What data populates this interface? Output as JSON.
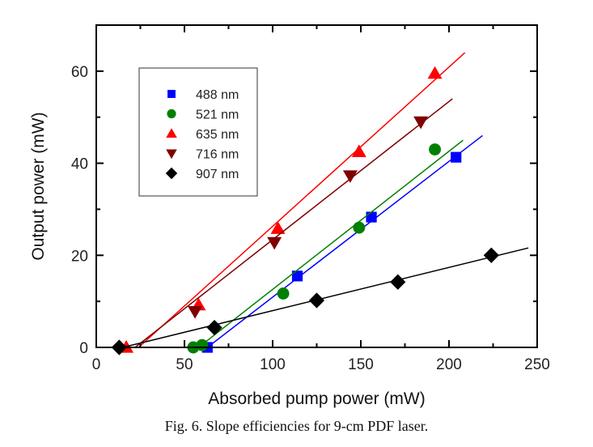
{
  "chart_data": {
    "type": "scatter",
    "title": "",
    "xlabel": "Absorbed pump power (mW)",
    "ylabel": "Output power (mW)",
    "xlim": [
      0,
      250
    ],
    "ylim": [
      0,
      70
    ],
    "x_ticks": [
      0,
      50,
      100,
      150,
      200,
      250
    ],
    "x_tick_labels": [
      "0",
      "50",
      "100",
      "150",
      "200",
      "250"
    ],
    "y_ticks": [
      0,
      20,
      40,
      60
    ],
    "y_tick_labels": [
      "0",
      "20",
      "40",
      "60"
    ],
    "x_minor_ticks": [
      25,
      75,
      125,
      175,
      225
    ],
    "y_minor_ticks": [
      10,
      30,
      50
    ],
    "grid": false,
    "legend_position": "top-left",
    "series": [
      {
        "name": "488 nm",
        "color": "#0000ff",
        "marker": "square",
        "points": [
          [
            63,
            0
          ],
          [
            114,
            15.5
          ],
          [
            156,
            28.3
          ],
          [
            204,
            41.3
          ]
        ],
        "fit": [
          [
            63,
            0
          ],
          [
            219,
            46
          ]
        ]
      },
      {
        "name": "521 nm",
        "color": "#008000",
        "marker": "circle",
        "points": [
          [
            55,
            0
          ],
          [
            60,
            0.5
          ],
          [
            106,
            11.7
          ],
          [
            149,
            26
          ],
          [
            192,
            43
          ]
        ],
        "fit": [
          [
            58,
            0
          ],
          [
            208,
            45
          ]
        ]
      },
      {
        "name": "635 nm",
        "color": "#ff0000",
        "marker": "triangle-up",
        "points": [
          [
            17,
            0
          ],
          [
            58,
            9.2
          ],
          [
            103,
            25.8
          ],
          [
            149,
            42.5
          ],
          [
            192,
            59.5
          ]
        ],
        "fit": [
          [
            24,
            0
          ],
          [
            209,
            64
          ]
        ]
      },
      {
        "name": "716 nm",
        "color": "#800000",
        "marker": "triangle-down",
        "points": [
          [
            56,
            7.8
          ],
          [
            101,
            22.8
          ],
          [
            144,
            37.3
          ],
          [
            184,
            49
          ]
        ],
        "fit": [
          [
            22,
            0
          ],
          [
            202,
            54
          ]
        ]
      },
      {
        "name": "907 nm",
        "color": "#000000",
        "marker": "diamond",
        "points": [
          [
            13,
            0
          ],
          [
            67,
            4.3
          ],
          [
            125,
            10.2
          ],
          [
            171,
            14.2
          ],
          [
            224,
            20
          ]
        ],
        "fit": [
          [
            15,
            0
          ],
          [
            245,
            21.6
          ]
        ]
      }
    ]
  },
  "caption": "Fig. 6. Slope efficiencies for 9-cm PDF laser."
}
